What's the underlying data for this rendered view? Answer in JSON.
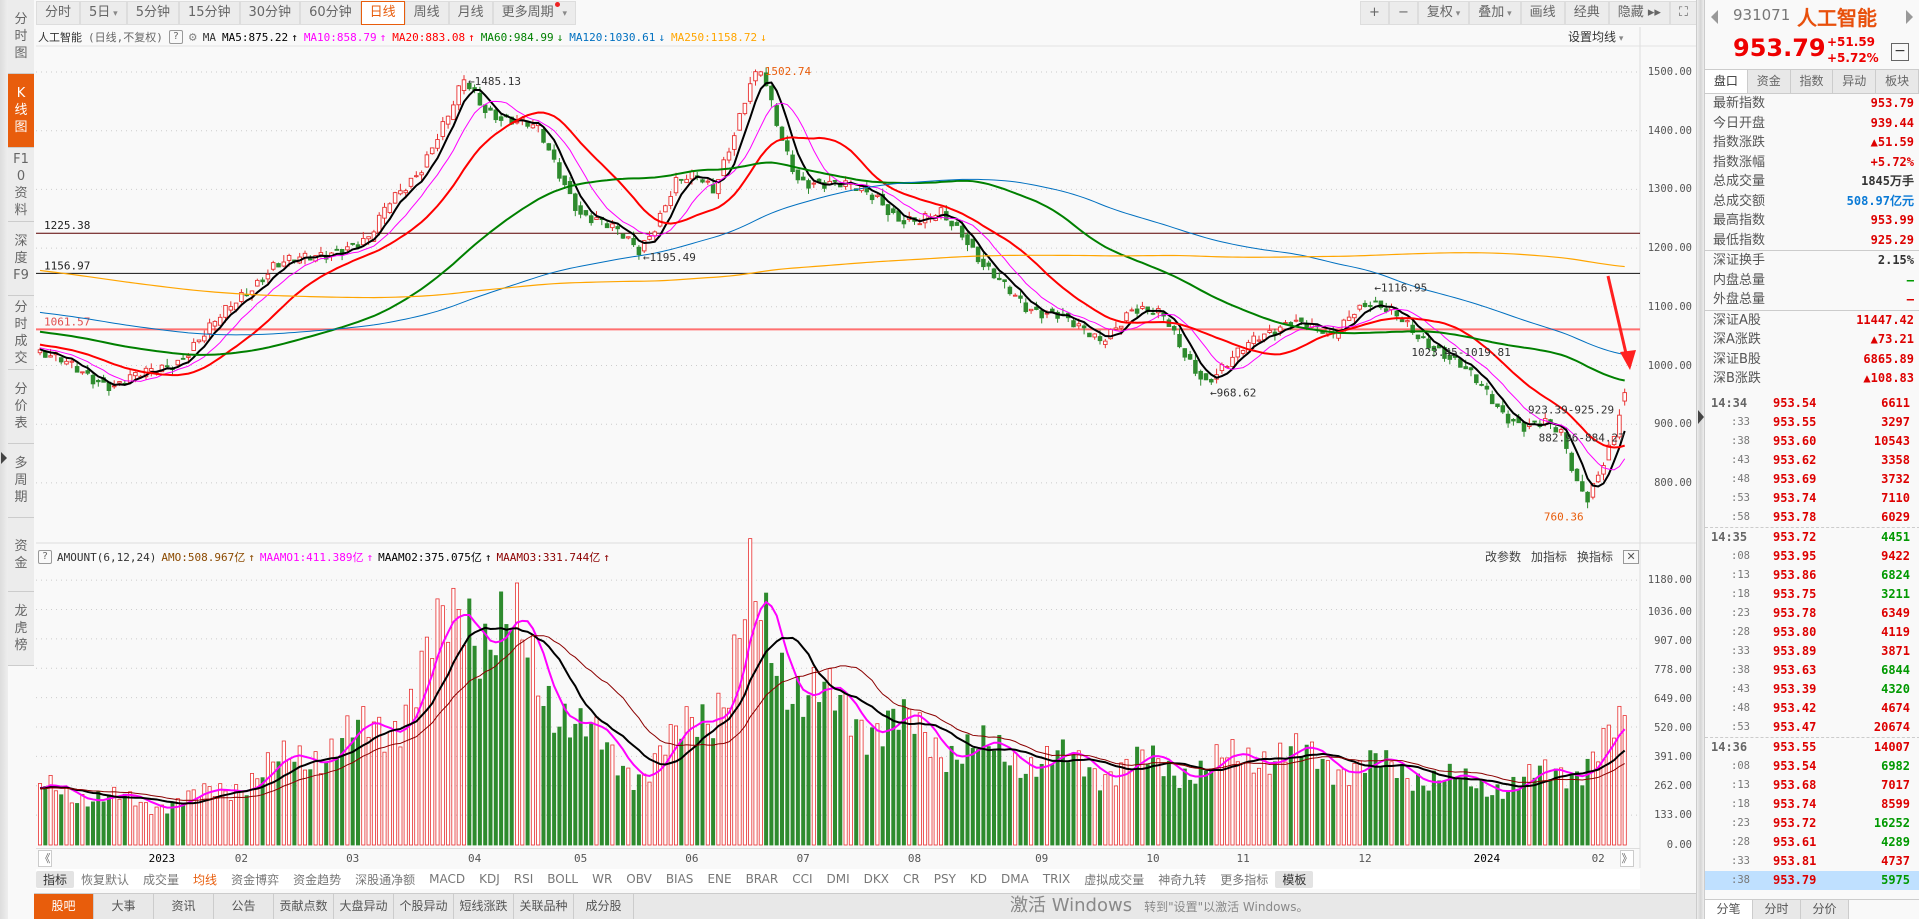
{
  "sidebar": {
    "tabs": [
      {
        "label": "分时图"
      },
      {
        "label": "K线图"
      },
      {
        "label": "F10资料"
      },
      {
        "label": "深度F9"
      },
      {
        "label": "分时成交"
      },
      {
        "label": "分价表"
      },
      {
        "label": "多周期"
      },
      {
        "label": "资金"
      },
      {
        "label": "龙虎榜"
      }
    ],
    "active": 1
  },
  "toolbar": {
    "periods": [
      "分时",
      "5日",
      "5分钟",
      "15分钟",
      "30分钟",
      "60分钟",
      "日线",
      "周线",
      "月线",
      "更多周期"
    ],
    "active_period": "日线",
    "right_buttons": [
      "+",
      "−",
      "复权",
      "叠加",
      "画线",
      "经典",
      "隐藏 ▸▸"
    ]
  },
  "ma_legend": {
    "name": "人工智能",
    "mode": "(日线,不复权)",
    "help": "?",
    "ma_label": "MA",
    "items": [
      {
        "text": "MA5:875.22",
        "arrow": "↑",
        "color": "#000000"
      },
      {
        "text": "MA10:858.79",
        "arrow": "↑",
        "color": "#ff00ff"
      },
      {
        "text": "MA20:883.08",
        "arrow": "↑",
        "color": "#ff0000"
      },
      {
        "text": "MA60:984.99",
        "arrow": "↓",
        "color": "#008000"
      },
      {
        "text": "MA120:1030.61",
        "arrow": "↓",
        "color": "#0070c0"
      },
      {
        "text": "MA250:1158.72",
        "arrow": "↓",
        "color": "#ffa500"
      }
    ],
    "set_ma": "设置均线"
  },
  "price_axis": [
    "1500.00",
    "1400.00",
    "1300.00",
    "1200.00",
    "1100.00",
    "1000.00",
    "900.00",
    "800.00"
  ],
  "annotations": {
    "high1": "←1485.13",
    "low1": "←1195.49",
    "high2": "1502.74",
    "low2": "←968.62",
    "high3": "←1116.95",
    "mid3": "1023.45-1019.81",
    "mid4": "923.39-925.29",
    "mid5": "882.96-884.27",
    "low3": "760.36",
    "line1": "1225.38",
    "line2": "1156.97",
    "line3": "1061.57"
  },
  "volume_legend": {
    "help": "?",
    "name": "AMOUNT(6,12,24)",
    "items": [
      {
        "text": "AMO:508.967亿",
        "arrow": "↑",
        "color": "#8b4a00"
      },
      {
        "text": "MAAMO1:411.389亿",
        "arrow": "↑",
        "color": "#ff00ff"
      },
      {
        "text": "MAAMO2:375.075亿",
        "arrow": "↑",
        "color": "#000000"
      },
      {
        "text": "MAAMO3:331.744亿",
        "arrow": "↑",
        "color": "#8b0000"
      }
    ],
    "buttons": [
      "改参数",
      "加指标",
      "换指标"
    ],
    "close": "✕"
  },
  "volume_axis": [
    "1180.00",
    "1036.00",
    "907.00",
    "778.00",
    "649.00",
    "520.00",
    "391.00",
    "262.00",
    "133.00",
    "0.00"
  ],
  "timeline": {
    "labels": [
      "2023",
      "02",
      "03",
      "04",
      "05",
      "06",
      "07",
      "08",
      "09",
      "10",
      "11",
      "12",
      "2024",
      "02"
    ],
    "prev": "《",
    "next": "》"
  },
  "indicator_tabs": [
    "指标",
    "恢复默认",
    "成交量",
    "均线",
    "资金博弈",
    "资金趋势",
    "深股通净额",
    "MACD",
    "KDJ",
    "RSI",
    "BOLL",
    "WR",
    "OBV",
    "BIAS",
    "ENE",
    "BRAR",
    "CCI",
    "DMI",
    "DKX",
    "CR",
    "PSY",
    "KD",
    "DMA",
    "TRIX",
    "虚拟成交量",
    "神奇九转",
    "更多指标",
    "模板"
  ],
  "bottom_tabs": [
    "股吧",
    "大事",
    "资讯",
    "公告",
    "贡献点数",
    "大盘异动",
    "个股异动",
    "短线涨跌",
    "关联品种",
    "成分股"
  ],
  "quote": {
    "code": "931071",
    "name": "人工智能",
    "price": "953.79",
    "change": "+51.59",
    "change_pct": "+5.72%",
    "tabs": [
      "盘口",
      "资金",
      "指数",
      "异动",
      "板块"
    ],
    "rows1": [
      {
        "k": "最新指数",
        "v": "953.79",
        "c": "#d00"
      },
      {
        "k": "今日开盘",
        "v": "939.44",
        "c": "#d00"
      },
      {
        "k": "指数涨跌",
        "v": "▲51.59",
        "c": "#d00"
      },
      {
        "k": "指数涨幅",
        "v": "+5.72%",
        "c": "#d00"
      },
      {
        "k": "总成交量",
        "v": "1845万手",
        "c": "#333"
      },
      {
        "k": "总成交额",
        "v": "508.97亿元",
        "c": "#0a7ad6"
      },
      {
        "k": "最高指数",
        "v": "953.99",
        "c": "#d00"
      },
      {
        "k": "最低指数",
        "v": "925.29",
        "c": "#d00"
      }
    ],
    "rows2": [
      {
        "k": "深证换手",
        "v": "2.15%",
        "c": "#333"
      },
      {
        "k": "内盘总量",
        "v": "—",
        "c": "#090"
      },
      {
        "k": "外盘总量",
        "v": "—",
        "c": "#d00"
      }
    ],
    "rows3": [
      {
        "k": "深证A股",
        "v": "11447.42",
        "c": "#d00"
      },
      {
        "k": "深A涨跌",
        "v": "▲73.21",
        "c": "#d00"
      },
      {
        "k": "深证B股",
        "v": "6865.89",
        "c": "#d00"
      },
      {
        "k": "深B涨跌",
        "v": "▲108.83",
        "c": "#d00"
      }
    ],
    "bottom_tabs": [
      "分笔",
      "分时",
      "分价"
    ]
  },
  "ticks": [
    {
      "t": "14:34",
      "p": "953.54",
      "q": "6611",
      "dir": "up"
    },
    {
      "t": ":33",
      "p": "953.55",
      "q": "3297",
      "dir": "up"
    },
    {
      "t": ":38",
      "p": "953.60",
      "q": "10543",
      "dir": "up"
    },
    {
      "t": ":43",
      "p": "953.62",
      "q": "3358",
      "dir": "up"
    },
    {
      "t": ":48",
      "p": "953.69",
      "q": "3732",
      "dir": "up"
    },
    {
      "t": ":53",
      "p": "953.74",
      "q": "7110",
      "dir": "up"
    },
    {
      "t": ":58",
      "p": "953.78",
      "q": "6029",
      "dir": "up"
    },
    {
      "t": "14:35",
      "p": "953.72",
      "q": "4451",
      "dir": "down"
    },
    {
      "t": ":08",
      "p": "953.95",
      "q": "9422",
      "dir": "up"
    },
    {
      "t": ":13",
      "p": "953.86",
      "q": "6824",
      "dir": "down"
    },
    {
      "t": ":18",
      "p": "953.75",
      "q": "3211",
      "dir": "down"
    },
    {
      "t": ":23",
      "p": "953.78",
      "q": "6349",
      "dir": "up"
    },
    {
      "t": ":28",
      "p": "953.80",
      "q": "4119",
      "dir": "up"
    },
    {
      "t": ":33",
      "p": "953.89",
      "q": "3871",
      "dir": "up"
    },
    {
      "t": ":38",
      "p": "953.63",
      "q": "6844",
      "dir": "down"
    },
    {
      "t": ":43",
      "p": "953.39",
      "q": "4320",
      "dir": "down"
    },
    {
      "t": ":48",
      "p": "953.42",
      "q": "4674",
      "dir": "up"
    },
    {
      "t": ":53",
      "p": "953.47",
      "q": "20674",
      "dir": "up"
    },
    {
      "t": "14:36",
      "p": "953.55",
      "q": "14007",
      "dir": "up"
    },
    {
      "t": ":08",
      "p": "953.54",
      "q": "6982",
      "dir": "down"
    },
    {
      "t": ":13",
      "p": "953.68",
      "q": "7017",
      "dir": "up"
    },
    {
      "t": ":18",
      "p": "953.74",
      "q": "8599",
      "dir": "up"
    },
    {
      "t": ":23",
      "p": "953.72",
      "q": "16252",
      "dir": "down"
    },
    {
      "t": ":28",
      "p": "953.61",
      "q": "4289",
      "dir": "down"
    },
    {
      "t": ":33",
      "p": "953.81",
      "q": "4737",
      "dir": "up"
    },
    {
      "t": ":38",
      "p": "953.79",
      "q": "5975",
      "dir": "down"
    }
  ],
  "watermark": {
    "line1": "激活 Windows",
    "line2": "转到\"设置\"以激活 Windows。"
  },
  "colors": {
    "accent": "#e85d0c",
    "up": "#e83030",
    "down": "#2e8b2e"
  },
  "chart_data": {
    "type": "candlestick",
    "title": "人工智能 日线",
    "ylim": [
      760,
      1520
    ],
    "volume_ylim": [
      0,
      1180
    ],
    "trading_days": 300,
    "close_path": [
      [
        0,
        1020
      ],
      [
        8,
        990
      ],
      [
        14,
        965
      ],
      [
        20,
        985
      ],
      [
        26,
        1010
      ],
      [
        32,
        1060
      ],
      [
        38,
        1120
      ],
      [
        44,
        1170
      ],
      [
        50,
        1180
      ],
      [
        56,
        1200
      ],
      [
        62,
        1210
      ],
      [
        66,
        1280
      ],
      [
        72,
        1340
      ],
      [
        77,
        1420
      ],
      [
        80,
        1485
      ],
      [
        84,
        1440
      ],
      [
        88,
        1420
      ],
      [
        94,
        1400
      ],
      [
        98,
        1330
      ],
      [
        102,
        1260
      ],
      [
        106,
        1240
      ],
      [
        110,
        1220
      ],
      [
        113,
        1200
      ],
      [
        116,
        1240
      ],
      [
        120,
        1310
      ],
      [
        124,
        1320
      ],
      [
        127,
        1300
      ],
      [
        131,
        1400
      ],
      [
        134,
        1480
      ],
      [
        136,
        1500
      ],
      [
        140,
        1380
      ],
      [
        143,
        1320
      ],
      [
        148,
        1310
      ],
      [
        154,
        1300
      ],
      [
        158,
        1290
      ],
      [
        162,
        1250
      ],
      [
        166,
        1240
      ],
      [
        170,
        1260
      ],
      [
        174,
        1230
      ],
      [
        178,
        1170
      ],
      [
        182,
        1130
      ],
      [
        186,
        1100
      ],
      [
        192,
        1090
      ],
      [
        196,
        1060
      ],
      [
        200,
        1040
      ],
      [
        206,
        1100
      ],
      [
        212,
        1080
      ],
      [
        216,
        1020
      ],
      [
        220,
        975
      ],
      [
        224,
        1000
      ],
      [
        230,
        1050
      ],
      [
        236,
        1080
      ],
      [
        240,
        1060
      ],
      [
        244,
        1050
      ],
      [
        248,
        1100
      ],
      [
        251,
        1110
      ],
      [
        256,
        1080
      ],
      [
        260,
        1050
      ],
      [
        264,
        1030
      ],
      [
        268,
        1000
      ],
      [
        272,
        960
      ],
      [
        276,
        920
      ],
      [
        280,
        900
      ],
      [
        284,
        900
      ],
      [
        287,
        880
      ],
      [
        290,
        800
      ],
      [
        292,
        780
      ],
      [
        295,
        840
      ],
      [
        297,
        880
      ],
      [
        299,
        953.79
      ]
    ],
    "amount_path": [
      [
        0,
        250
      ],
      [
        10,
        220
      ],
      [
        20,
        180
      ],
      [
        30,
        210
      ],
      [
        40,
        300
      ],
      [
        50,
        400
      ],
      [
        60,
        480
      ],
      [
        66,
        550
      ],
      [
        72,
        750
      ],
      [
        78,
        1000
      ],
      [
        80,
        1150
      ],
      [
        84,
        950
      ],
      [
        90,
        900
      ],
      [
        96,
        700
      ],
      [
        102,
        500
      ],
      [
        108,
        400
      ],
      [
        114,
        320
      ],
      [
        120,
        450
      ],
      [
        124,
        600
      ],
      [
        130,
        700
      ],
      [
        134,
        1050
      ],
      [
        138,
        900
      ],
      [
        144,
        700
      ],
      [
        150,
        600
      ],
      [
        160,
        550
      ],
      [
        170,
        450
      ],
      [
        180,
        400
      ],
      [
        190,
        380
      ],
      [
        200,
        340
      ],
      [
        210,
        360
      ],
      [
        220,
        330
      ],
      [
        230,
        420
      ],
      [
        240,
        380
      ],
      [
        250,
        350
      ],
      [
        260,
        320
      ],
      [
        270,
        260
      ],
      [
        280,
        280
      ],
      [
        290,
        350
      ],
      [
        299,
        508.97
      ]
    ],
    "month_start_days": [
      23,
      38,
      59,
      82,
      102,
      123,
      144,
      165,
      189,
      210,
      227,
      250,
      273,
      294
    ],
    "ma_periods": [
      5,
      10,
      20,
      60,
      120,
      250
    ],
    "amount_ma_periods": [
      6,
      12,
      24
    ],
    "horizontal_lines": [
      1225.38,
      1156.97,
      1061.57
    ]
  }
}
